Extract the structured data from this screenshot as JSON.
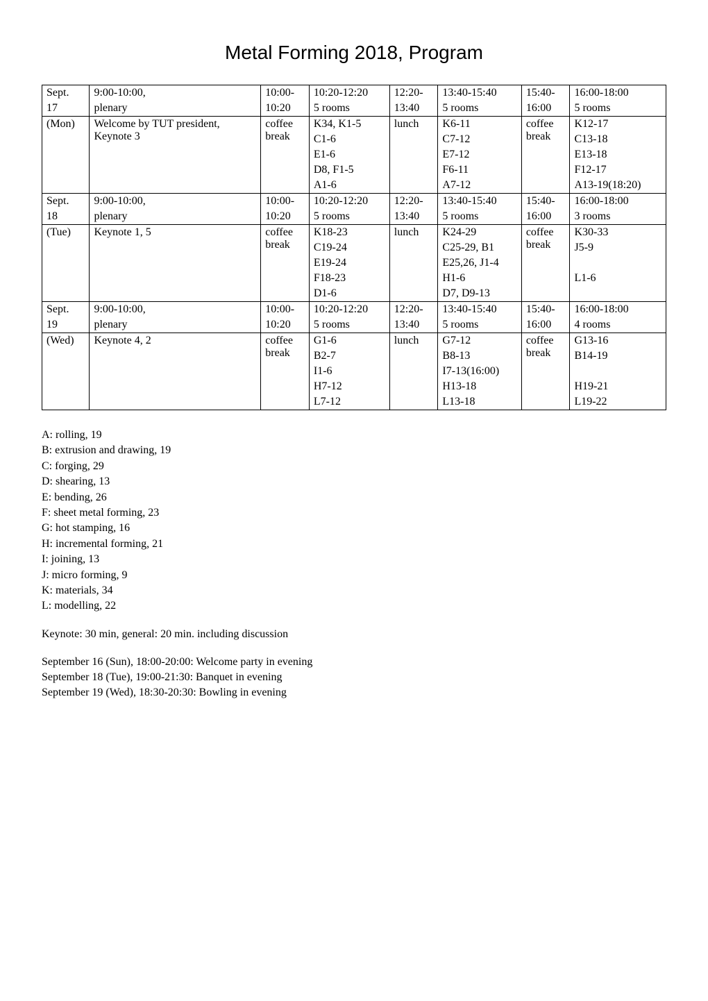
{
  "title": "Metal Forming 2018, Program",
  "schedule": {
    "structure_type": "table",
    "columns": 8,
    "days": [
      {
        "header": {
          "c0": "Sept. 17",
          "c1": "9:00-10:00, plenary",
          "c2": "10:00-10:20",
          "c3": "10:20-12:20",
          "c3b": "5 rooms",
          "c4": "12:20-13:40",
          "c5": "13:40-15:40",
          "c5b": "5 rooms",
          "c6": "15:40-16:00",
          "c7": "16:00-18:00",
          "c7b": "5 rooms"
        },
        "body": {
          "c0": "(Mon)",
          "c1_lines": [
            "Welcome by TUT president,",
            "Keynote 3"
          ],
          "c2": "coffee break",
          "c3_lines": [
            "K34, K1-5",
            "C1-6",
            "E1-6",
            "D8, F1-5",
            "A1-6"
          ],
          "c4": "lunch",
          "c5_lines": [
            "K6-11",
            "C7-12",
            "E7-12",
            "F6-11",
            "A7-12"
          ],
          "c6": "coffee break",
          "c7_lines": [
            "K12-17",
            "C13-18",
            "E13-18",
            "F12-17",
            "A13-19(18:20)"
          ]
        }
      },
      {
        "header": {
          "c0": "Sept. 18",
          "c1": "9:00-10:00, plenary",
          "c2": "10:00-10:20",
          "c3": "10:20-12:20",
          "c3b": "5 rooms",
          "c4": "12:20-13:40",
          "c5": "13:40-15:40",
          "c5b": "5 rooms",
          "c6": "15:40-16:00",
          "c7": "16:00-18:00",
          "c7b": "3 rooms"
        },
        "body": {
          "c0": "(Tue)",
          "c1_lines": [
            "Keynote 1, 5"
          ],
          "c2": "coffee break",
          "c3_lines": [
            "K18-23",
            "C19-24",
            "E19-24",
            "F18-23",
            "D1-6"
          ],
          "c4": "lunch",
          "c5_lines": [
            "K24-29",
            "C25-29, B1",
            "E25,26, J1-4",
            "H1-6",
            "D7, D9-13"
          ],
          "c6": "coffee break",
          "c7_lines": [
            "K30-33",
            "J5-9",
            "",
            "L1-6"
          ]
        }
      },
      {
        "header": {
          "c0": "Sept. 19",
          "c1": "9:00-10:00, plenary",
          "c2": "10:00-10:20",
          "c3": "10:20-12:20",
          "c3b": "5 rooms",
          "c4": "12:20-13:40",
          "c5": "13:40-15:40",
          "c5b": "5 rooms",
          "c6": "15:40-16:00",
          "c7": "16:00-18:00",
          "c7b": "4 rooms"
        },
        "body": {
          "c0": "(Wed)",
          "c1_lines": [
            "Keynote 4, 2"
          ],
          "c2": "coffee break",
          "c3_lines": [
            "G1-6",
            "B2-7",
            "I1-6",
            "H7-12",
            "L7-12"
          ],
          "c4": "lunch",
          "c5_lines": [
            "G7-12",
            "B8-13",
            "I7-13(16:00)",
            "H13-18",
            "L13-18"
          ],
          "c6": "coffee break",
          "c7_lines": [
            "G13-16",
            "B14-19",
            "",
            "H19-21",
            "L19-22"
          ]
        }
      }
    ]
  },
  "sessions": [
    "A: rolling, 19",
    "B: extrusion and drawing, 19",
    "C: forging, 29",
    "D: shearing, 13",
    "E: bending, 26",
    "F: sheet metal forming, 23",
    "G: hot stamping, 16",
    "H: incremental forming, 21",
    "I: joining, 13",
    "J: micro forming, 9",
    "K: materials, 34",
    "L: modelling, 22"
  ],
  "keynote_note": "Keynote: 30 min, general: 20 min. including discussion",
  "events": [
    "September 16 (Sun), 18:00-20:00: Welcome party in evening",
    "September 18 (Tue), 19:00-21:30: Banquet in evening",
    "September 19 (Wed), 18:30-20:30: Bowling in evening"
  ],
  "styling": {
    "body_font": "Times New Roman",
    "title_font": "Arial",
    "title_fontsize": 28,
    "body_fontsize": 16,
    "border_color": "#000000",
    "background_color": "#ffffff",
    "text_color": "#000000"
  }
}
